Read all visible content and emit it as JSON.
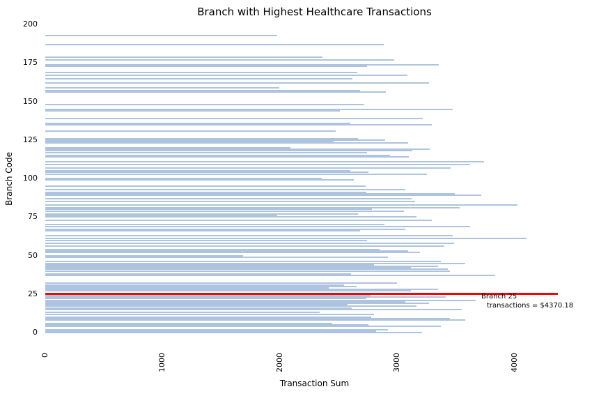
{
  "chart_data": {
    "type": "bar",
    "orientation": "horizontal",
    "title": "Branch with Highest Healthcare Transactions",
    "xlabel": "Transaction Sum",
    "ylabel": "Branch Code",
    "xlim": [
      0,
      4590
    ],
    "ylim": [
      0,
      201
    ],
    "x_ticks": [
      0,
      1000,
      2000,
      3000,
      4000
    ],
    "y_ticks": [
      0,
      25,
      50,
      75,
      100,
      125,
      150,
      175,
      200
    ],
    "grid": false,
    "legend": "none",
    "bar_color": "#aec4de",
    "series": [
      {
        "name": "transactions",
        "branches": [
          193,
          187,
          179,
          177,
          174,
          173,
          169,
          167,
          165,
          162,
          159,
          157,
          156,
          148,
          145,
          144,
          139,
          136,
          135,
          131,
          126,
          125,
          124,
          123,
          120,
          119,
          118,
          117,
          115,
          114,
          111,
          109,
          107,
          105,
          104,
          103,
          100,
          99,
          95,
          93,
          91,
          90,
          89,
          87,
          85,
          83,
          81,
          80,
          79,
          77,
          76,
          75,
          73,
          70,
          69,
          67,
          66,
          63,
          61,
          60,
          58,
          56,
          54,
          53,
          52,
          50,
          49,
          46,
          45,
          44,
          43,
          42,
          41,
          40,
          38,
          37,
          32,
          31,
          30,
          29,
          28,
          27,
          25,
          24,
          23,
          22,
          21,
          20,
          19,
          18,
          17,
          16,
          15,
          13,
          12,
          10,
          9,
          8,
          6,
          5,
          4,
          2,
          1,
          0
        ],
        "values": [
          1975,
          2886,
          2362,
          2975,
          3356,
          2743,
          2660,
          3088,
          2618,
          3273,
          1993,
          2683,
          2904,
          2719,
          3475,
          2511,
          3219,
          2600,
          3296,
          2475,
          2666,
          2898,
          2458,
          3094,
          2088,
          3279,
          3129,
          2743,
          2939,
          3100,
          3743,
          3624,
          3457,
          2600,
          2755,
          3255,
          2356,
          2630,
          2729,
          3070,
          2737,
          3490,
          3719,
          3125,
          3154,
          4023,
          3534,
          2784,
          3058,
          2666,
          1975,
          3165,
          3296,
          2892,
          3624,
          3070,
          2683,
          3475,
          4100,
          2743,
          3487,
          3404,
          2850,
          3094,
          3195,
          1684,
          2921,
          3374,
          3582,
          2803,
          3350,
          3117,
          3433,
          3451,
          2606,
          3838,
          3000,
          2550,
          2654,
          2416,
          3350,
          3117,
          4370.18,
          2773,
          3416,
          2740,
          3670,
          3070,
          3270,
          2577,
          3165,
          2610,
          3552,
          2338,
          2803,
          2780,
          3450,
          3582,
          2446,
          2755,
          3374,
          2921,
          2821,
          3213
        ]
      }
    ],
    "highlight": {
      "branch": 25,
      "value": 4370.18,
      "line_color": "#ff0000",
      "label_line1": "Branch 25",
      "label_line2": "transactions = $4370.18"
    }
  },
  "colors": {
    "background": "#ffffff",
    "bar": "#aec4de",
    "highlight_line": "#ff0000",
    "text": "#000000"
  }
}
